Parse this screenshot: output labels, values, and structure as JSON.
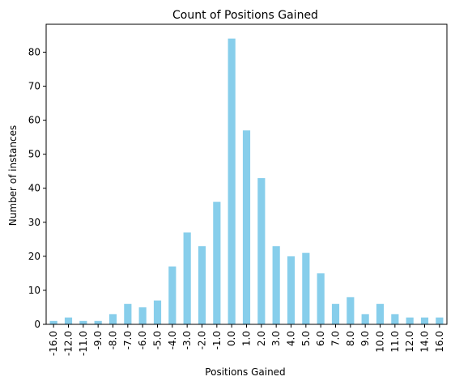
{
  "chart_data": {
    "type": "bar",
    "title": "Count of Positions Gained",
    "xlabel": "Positions Gained",
    "ylabel": "Number of instances",
    "categories": [
      "-16.0",
      "-12.0",
      "-11.0",
      "-9.0",
      "-8.0",
      "-7.0",
      "-6.0",
      "-5.0",
      "-4.0",
      "-3.0",
      "-2.0",
      "-1.0",
      "0.0",
      "1.0",
      "2.0",
      "3.0",
      "4.0",
      "5.0",
      "6.0",
      "7.0",
      "8.0",
      "9.0",
      "10.0",
      "11.0",
      "12.0",
      "14.0",
      "16.0"
    ],
    "values": [
      1,
      2,
      1,
      1,
      3,
      6,
      5,
      7,
      17,
      27,
      23,
      36,
      84,
      57,
      43,
      23,
      20,
      21,
      15,
      6,
      8,
      3,
      6,
      3,
      2,
      2,
      2
    ],
    "ylim": [
      0,
      88.2
    ],
    "yticks": [
      0,
      10,
      20,
      30,
      40,
      50,
      60,
      70,
      80
    ],
    "bar_color": "#87ceeb",
    "grid": false,
    "legend": "none"
  }
}
